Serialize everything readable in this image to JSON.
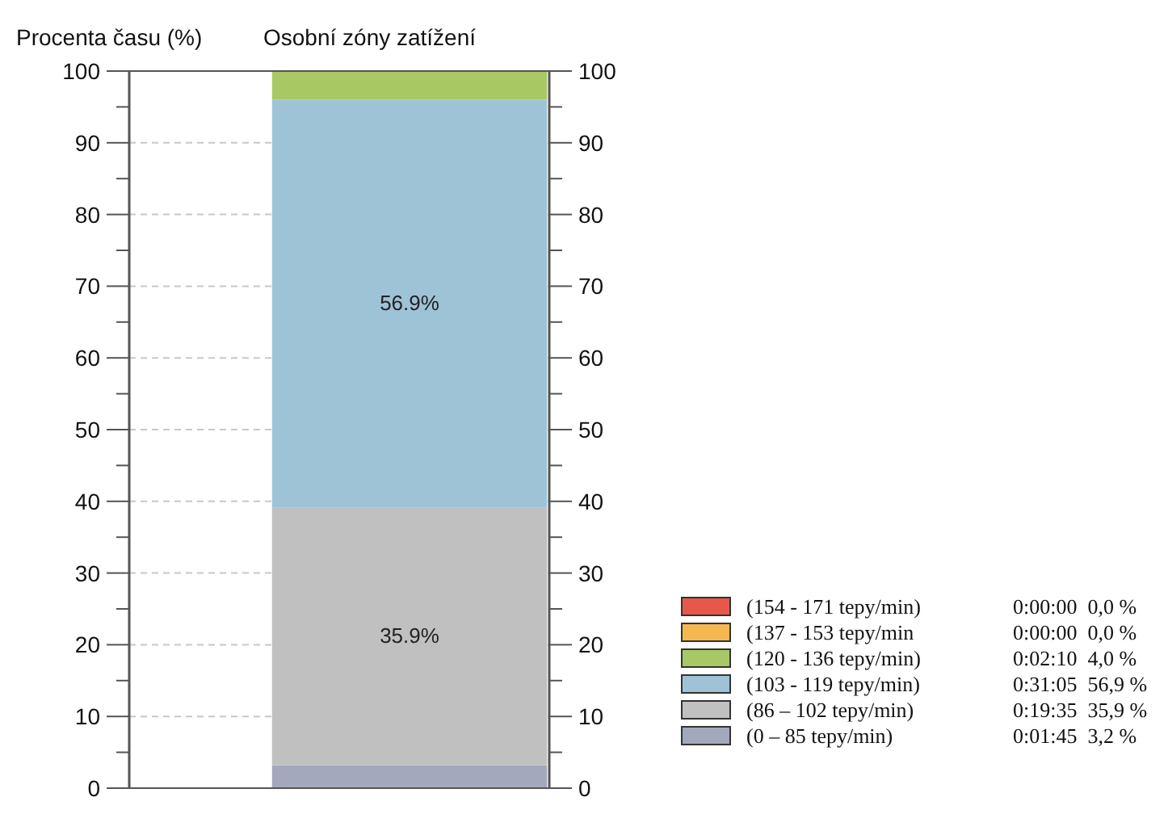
{
  "chart_data": {
    "type": "bar",
    "title": "Osobní zóny zatížení",
    "ylabel": "Procenta času (%)",
    "categories": [
      null
    ],
    "stacked": true,
    "grid": "y",
    "legend": "bottom right",
    "ylim": [
      0,
      100
    ],
    "yticks": [
      0,
      {
        "value": 5,
        "label": null
      },
      10,
      {
        "value": 15,
        "label": null
      },
      20,
      {
        "value": 25,
        "label": null
      },
      30,
      {
        "value": 35,
        "label": null
      },
      40,
      {
        "value": 45,
        "label": null
      },
      50,
      {
        "value": 55,
        "label": null
      },
      60,
      {
        "value": 65,
        "label": null
      },
      70,
      {
        "value": 75,
        "label": null
      },
      80,
      {
        "value": 85,
        "label": null
      },
      90,
      {
        "value": 95,
        "label": null
      },
      100
    ],
    "y2lim": [
      0,
      100
    ],
    "y2ticks": [
      0,
      {
        "value": 5,
        "label": null
      },
      10,
      {
        "value": 15,
        "label": null
      },
      20,
      {
        "value": 25,
        "label": null
      },
      30,
      {
        "value": 35,
        "label": null
      },
      40,
      {
        "value": 45,
        "label": null
      },
      50,
      {
        "value": 55,
        "label": null
      },
      60,
      {
        "value": 65,
        "label": null
      },
      70,
      {
        "value": 75,
        "label": null
      },
      80,
      {
        "value": 85,
        "label": null
      },
      90,
      {
        "value": 95,
        "label": null
      },
      100
    ],
    "series": [
      {
        "name": "(0 – 85 tepy/min)",
        "color": "#a3a8bc",
        "values": [
          3.2
        ],
        "value_labels": [
          null
        ]
      },
      {
        "name": "(86 – 102 tepy/min)",
        "color": "#c0c0c0",
        "values": [
          35.9
        ],
        "value_labels": [
          "35.9%"
        ]
      },
      {
        "name": "(103 - 119 tepy/min)",
        "color": "#9fc3d6",
        "values": [
          56.9
        ],
        "value_labels": [
          "56.9%"
        ]
      },
      {
        "name": "(120 - 136 tepy/min)",
        "color": "#a8c864",
        "values": [
          4.0
        ],
        "value_labels": [
          null
        ]
      },
      {
        "name": "(137 - 153 tepy/min",
        "color": "#f5b850",
        "values": [
          0
        ],
        "value_labels": [
          null
        ]
      },
      {
        "name": "(154 - 171 tepy/min)",
        "color": "#e8584a",
        "values": [
          0
        ],
        "value_labels": [
          null
        ]
      }
    ],
    "annotations": [
      "0:01:45  3,2 %",
      "0:19:35  35,9 %",
      "0:31:05  56,9 %",
      "0:02:10  4,0 %",
      "0:00:00  0,0 %",
      "0:00:00  0,0 %"
    ]
  }
}
